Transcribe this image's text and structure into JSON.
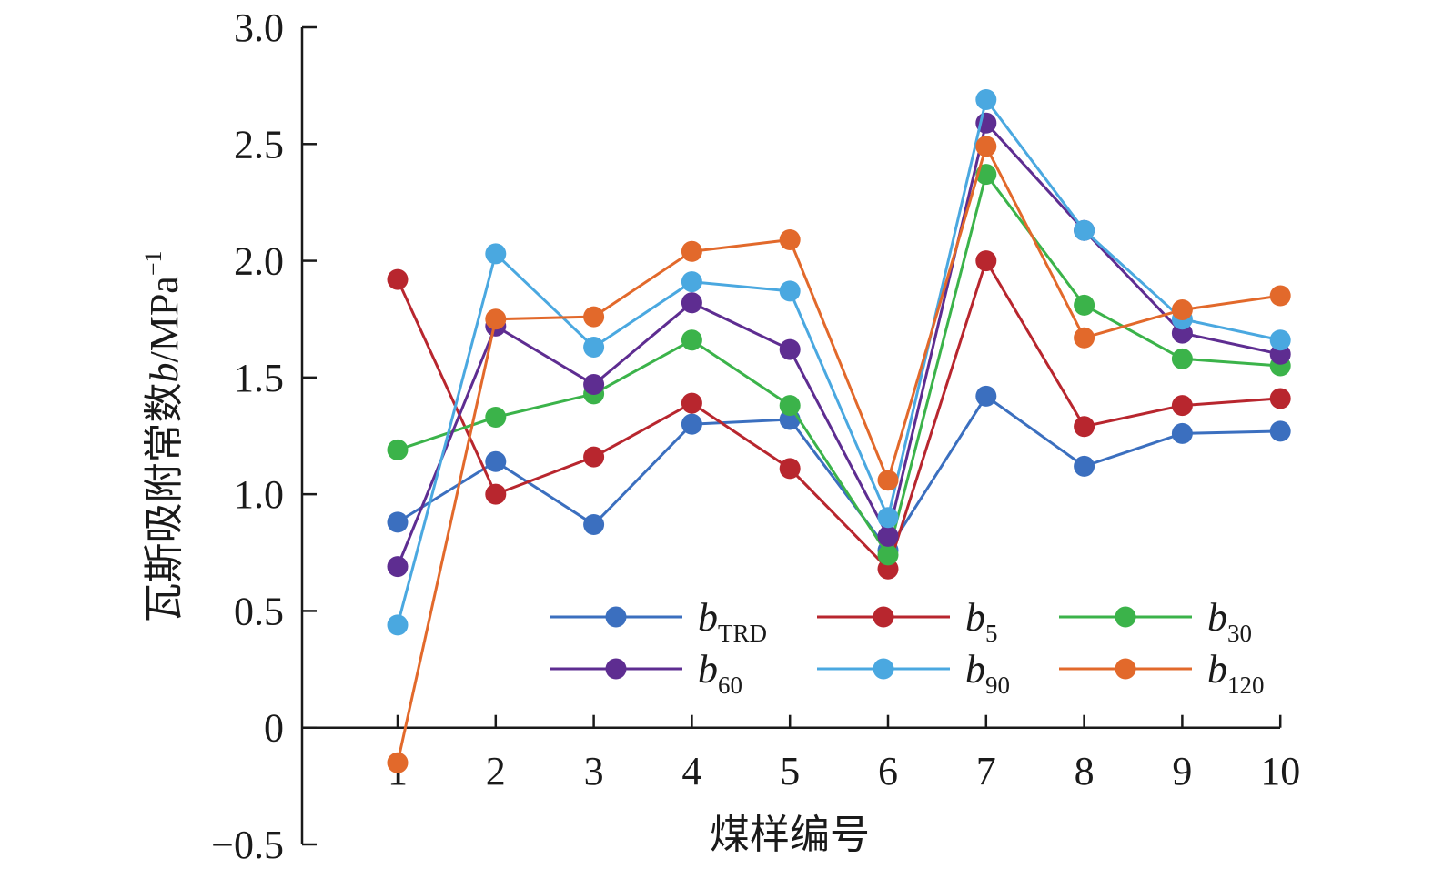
{
  "chart_data": {
    "type": "line",
    "title": "",
    "xlabel": "煤样编号",
    "ylabel_main": "瓦斯吸附常数",
    "ylabel_var": "b",
    "ylabel_unit": "/MPa",
    "ylabel_sup": "−1",
    "x": [
      1,
      2,
      3,
      4,
      5,
      6,
      7,
      8,
      9,
      10
    ],
    "x_tick_labels": [
      "1",
      "2",
      "3",
      "4",
      "5",
      "6",
      "7",
      "8",
      "9",
      "10"
    ],
    "ylim": [
      -0.5,
      3.0
    ],
    "y_tick_labels": [
      "−0.5",
      "0",
      "0.5",
      "1.0",
      "1.5",
      "2.0",
      "2.5",
      "3.0"
    ],
    "y_ticks": [
      -0.5,
      0,
      0.5,
      1.0,
      1.5,
      2.0,
      2.5,
      3.0
    ],
    "grid": false,
    "legend_position": "bottom-right",
    "legend_columns": 3,
    "series": [
      {
        "name": "b",
        "sub": "TRD",
        "color": "#3b6fbf",
        "values": [
          0.88,
          1.14,
          0.87,
          1.3,
          1.32,
          0.76,
          1.42,
          1.12,
          1.26,
          1.27
        ]
      },
      {
        "name": "b",
        "sub": "5",
        "color": "#b8262e",
        "values": [
          1.92,
          1.0,
          1.16,
          1.39,
          1.11,
          0.68,
          2.0,
          1.29,
          1.38,
          1.41
        ]
      },
      {
        "name": "b",
        "sub": "30",
        "color": "#3bb34a",
        "values": [
          1.19,
          1.33,
          1.43,
          1.66,
          1.38,
          0.74,
          2.37,
          1.81,
          1.58,
          1.55
        ]
      },
      {
        "name": "b",
        "sub": "60",
        "color": "#5e2d91",
        "values": [
          0.69,
          1.72,
          1.47,
          1.82,
          1.62,
          0.82,
          2.59,
          2.13,
          1.69,
          1.6
        ]
      },
      {
        "name": "b",
        "sub": "90",
        "color": "#4aa8e0",
        "values": [
          0.44,
          2.03,
          1.63,
          1.91,
          1.87,
          0.9,
          2.69,
          2.13,
          1.75,
          1.66
        ]
      },
      {
        "name": "b",
        "sub": "120",
        "color": "#e2692b",
        "values": [
          -0.15,
          1.75,
          1.76,
          2.04,
          2.09,
          1.06,
          2.49,
          1.67,
          1.79,
          1.85
        ]
      }
    ]
  }
}
